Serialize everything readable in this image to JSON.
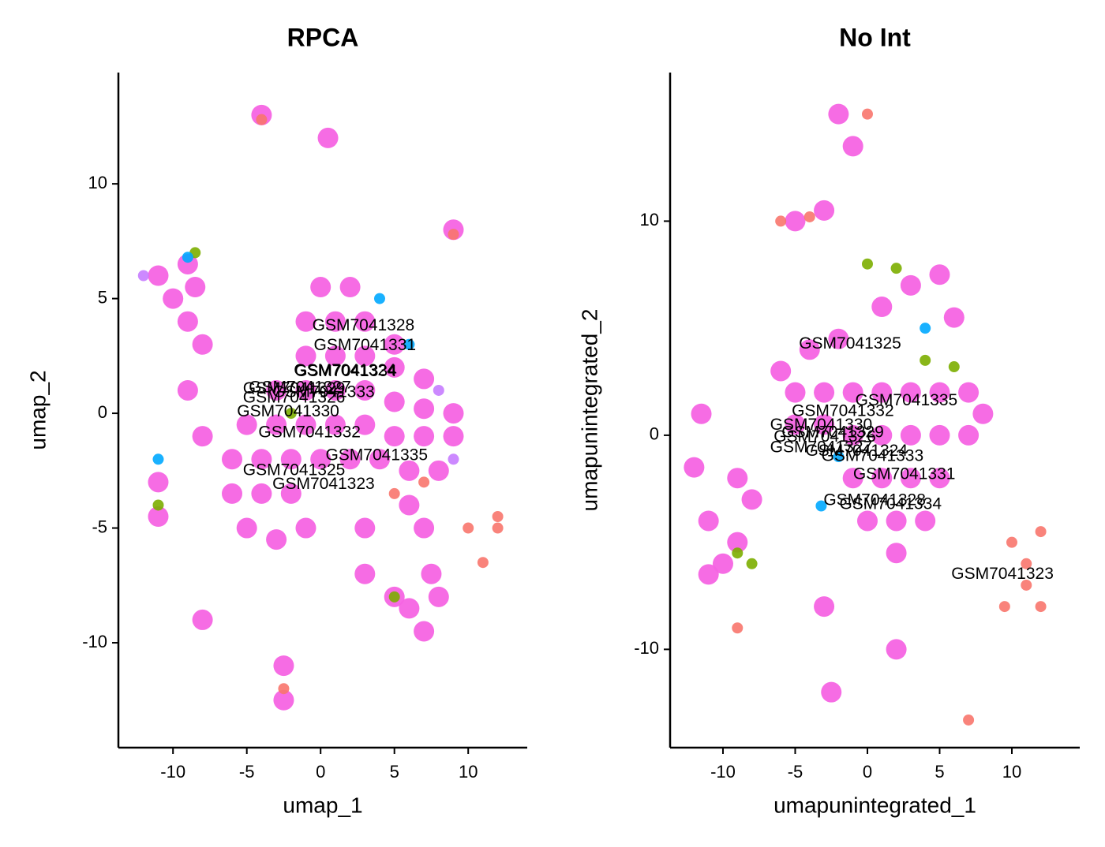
{
  "chart_data": [
    {
      "type": "scatter",
      "title": "RPCA",
      "x_label": "umap_1",
      "y_label": "umap_2",
      "xlim": [
        -13.7,
        14.0
      ],
      "ylim": [
        -14.57,
        14.85
      ],
      "xticks": [
        -10,
        -5,
        0,
        5,
        10
      ],
      "yticks": [
        -10,
        -5,
        0,
        5,
        10
      ],
      "series": [
        {
          "color": "#F564E3",
          "x": [
            0,
            2,
            -1,
            1,
            3,
            5,
            -1,
            1,
            3,
            5,
            7,
            -3,
            -1,
            1,
            3,
            5,
            7,
            9,
            -5,
            -3,
            -1,
            1,
            3,
            5,
            7,
            9,
            -6,
            -4,
            -2,
            0,
            2,
            4,
            6,
            8,
            -6,
            -4,
            -2,
            6,
            -5,
            -3,
            -1,
            3,
            7,
            7.5,
            6,
            7,
            5,
            3,
            8,
            -11,
            -9,
            -10,
            -8.5,
            -9,
            -8,
            -9,
            -8,
            -4,
            0.5,
            9,
            -11,
            -11,
            -2.5,
            -2.5,
            -8
          ],
          "y": [
            5.5,
            5.5,
            4,
            4,
            4,
            3,
            2.5,
            2.5,
            2.5,
            2,
            1.5,
            1,
            1,
            1,
            1,
            0.5,
            0.2,
            0,
            -0.5,
            -0.5,
            -0.5,
            -0.5,
            -0.5,
            -1,
            -1,
            -1,
            -2,
            -2,
            -2,
            -2,
            -2,
            -2,
            -2.5,
            -2.5,
            -3.5,
            -3.5,
            -3.5,
            -4,
            -5,
            -5.5,
            -5,
            -5,
            -5,
            -7,
            -8.5,
            -9.5,
            -8,
            -7,
            -8,
            6,
            6.5,
            5,
            5.5,
            4,
            3,
            1,
            -1,
            13,
            12,
            8,
            -3,
            -4.5,
            -11,
            -12.5,
            -9
          ]
        },
        {
          "color": "#F8766D",
          "x": [
            10,
            12,
            11,
            5,
            7,
            12,
            -4,
            9,
            -2.5
          ],
          "y": [
            -5,
            -5,
            -6.5,
            -3.5,
            -3,
            -4.5,
            12.8,
            7.8,
            -12
          ]
        },
        {
          "color": "#7CAE00",
          "x": [
            -8.5,
            -2,
            5,
            -11
          ],
          "y": [
            7,
            0,
            -8,
            -4
          ]
        },
        {
          "color": "#00A9FF",
          "x": [
            4,
            6,
            -9,
            -11
          ],
          "y": [
            5,
            3,
            6.8,
            -2
          ]
        },
        {
          "color": "#C77CFF",
          "x": [
            8,
            9,
            -12
          ],
          "y": [
            1,
            -2,
            6
          ]
        }
      ],
      "annotations": [
        {
          "text": "GSM7041328",
          "x": 2.9,
          "y": 3.8
        },
        {
          "text": "GSM7041331",
          "x": 3.0,
          "y": 2.95
        },
        {
          "text": "GSM7041324",
          "x": 1.65,
          "y": 1.85
        },
        {
          "text": "GSM7041334",
          "x": 1.7,
          "y": 1.8
        },
        {
          "text": "GSM7041327",
          "x": -1.4,
          "y": 1.1
        },
        {
          "text": "GSM7041329",
          "x": -1.8,
          "y": 1.05
        },
        {
          "text": "GSM7041333",
          "x": 0.2,
          "y": 0.9
        },
        {
          "text": "GSM7041326",
          "x": -1.8,
          "y": 0.65
        },
        {
          "text": "GSM7041330",
          "x": -2.2,
          "y": 0.05
        },
        {
          "text": "GSM7041332",
          "x": -0.75,
          "y": -0.85
        },
        {
          "text": "GSM7041335",
          "x": 3.8,
          "y": -1.85
        },
        {
          "text": "GSM7041325",
          "x": -1.8,
          "y": -2.5
        },
        {
          "text": "GSM7041323",
          "x": 0.2,
          "y": -3.1
        }
      ]
    },
    {
      "type": "scatter",
      "title": "No Int",
      "x_label": "umapunintegrated_1",
      "y_label": "umapunintegrated_2",
      "xlim": [
        -13.66,
        14.7
      ],
      "ylim": [
        -14.59,
        16.94
      ],
      "xticks": [
        -10,
        -5,
        0,
        5,
        10
      ],
      "yticks": [
        -10,
        0,
        10
      ],
      "series": [
        {
          "color": "#F564E3",
          "x": [
            -4,
            -2,
            -5,
            -3,
            -1,
            1,
            3,
            5,
            7,
            8,
            -5,
            -3,
            -1,
            1,
            3,
            5,
            7,
            -1,
            1,
            3,
            5,
            0,
            2,
            4,
            2,
            1,
            3,
            5,
            6,
            -6,
            -2,
            -1,
            -3,
            -5,
            -10,
            -9,
            -11,
            -11,
            -12,
            -9,
            -11.5,
            -8,
            -3,
            2,
            -2.5
          ],
          "y": [
            4,
            4.5,
            2,
            2,
            2,
            2,
            2,
            2,
            2,
            1,
            0.5,
            0.5,
            0,
            0,
            0,
            0,
            0,
            -2,
            -2,
            -2,
            -2,
            -4,
            -4,
            -4,
            -5.5,
            6,
            7,
            7.5,
            5.5,
            3,
            15,
            13.5,
            10.5,
            10,
            -6,
            -5,
            -6.5,
            -4,
            -1.5,
            -2,
            1,
            -3,
            -8,
            -10,
            -12
          ]
        },
        {
          "color": "#F8766D",
          "x": [
            10,
            12,
            11,
            12,
            9.5,
            11,
            -6,
            -4,
            0,
            -9,
            7
          ],
          "y": [
            -5,
            -4.5,
            -7,
            -8,
            -8,
            -6,
            10,
            10.2,
            15,
            -9,
            -13.3
          ]
        },
        {
          "color": "#7CAE00",
          "x": [
            0,
            2,
            4,
            6,
            -9,
            -8
          ],
          "y": [
            8,
            7.8,
            3.5,
            3.2,
            -5.5,
            -6
          ]
        },
        {
          "color": "#00A9FF",
          "x": [
            -2,
            4,
            -3.2
          ],
          "y": [
            -1,
            5,
            -3.3
          ]
        }
      ],
      "annotations": [
        {
          "text": "GSM7041325",
          "x": -1.2,
          "y": 4.25
        },
        {
          "text": "GSM7041335",
          "x": 2.7,
          "y": 1.6
        },
        {
          "text": "GSM7041332",
          "x": -1.7,
          "y": 1.1
        },
        {
          "text": "GSM7041330",
          "x": -3.2,
          "y": 0.45
        },
        {
          "text": "GSM7041329",
          "x": -2.4,
          "y": 0.1
        },
        {
          "text": "GSM7041326",
          "x": -2.95,
          "y": -0.1
        },
        {
          "text": "GSM7041327",
          "x": -3.2,
          "y": -0.6
        },
        {
          "text": "GSM7041324",
          "x": -0.75,
          "y": -0.75
        },
        {
          "text": "GSM7041333",
          "x": 0.35,
          "y": -1.0
        },
        {
          "text": "GSM7041331",
          "x": 2.55,
          "y": -1.85
        },
        {
          "text": "GSM7041328",
          "x": 0.5,
          "y": -3.05
        },
        {
          "text": "GSM7041334",
          "x": 1.6,
          "y": -3.25
        },
        {
          "text": "GSM7041323",
          "x": 9.35,
          "y": -6.5
        }
      ]
    }
  ]
}
